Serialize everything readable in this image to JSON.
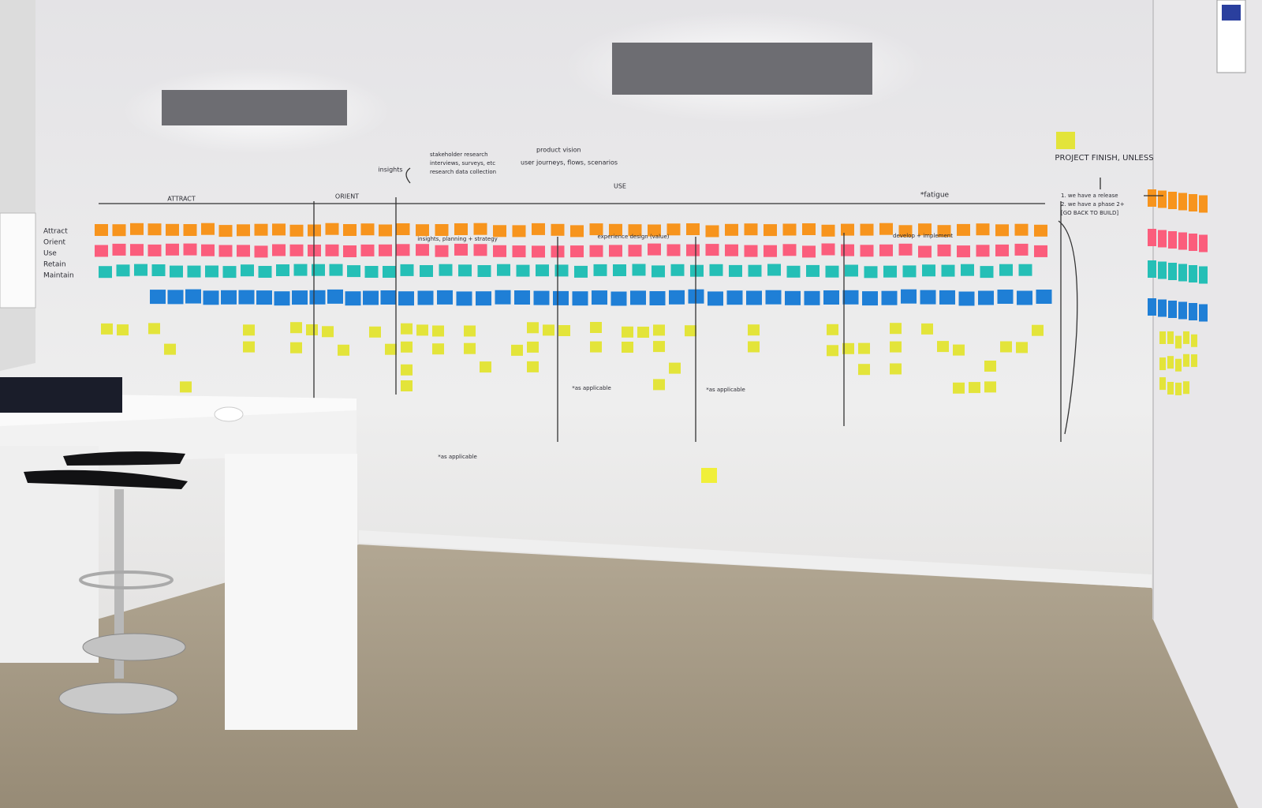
{
  "wall": {
    "phases": [
      "ATTRACT",
      "ORIENT",
      "USE"
    ],
    "left_list": [
      "Attract",
      "Orient",
      "Use",
      "Retain",
      "Maintain"
    ],
    "insights": {
      "label": "insights",
      "items": [
        "stakeholder research",
        "interviews, surveys, etc",
        "research data collection",
        "product vision",
        "user journeys, flows, scenarios"
      ]
    },
    "bands": [
      "insights, planning + strategy",
      "experience design (value)",
      "develop + implement"
    ],
    "annotations": [
      "*as applicable",
      "*as applicable",
      "*as applicable",
      "*fatigue"
    ],
    "finish": {
      "title": "PROJECT FINISH, UNLESS",
      "items": [
        "1. we have a release",
        "2. we have a phase 2+",
        "[GO BACK TO BUILD]"
      ]
    }
  }
}
